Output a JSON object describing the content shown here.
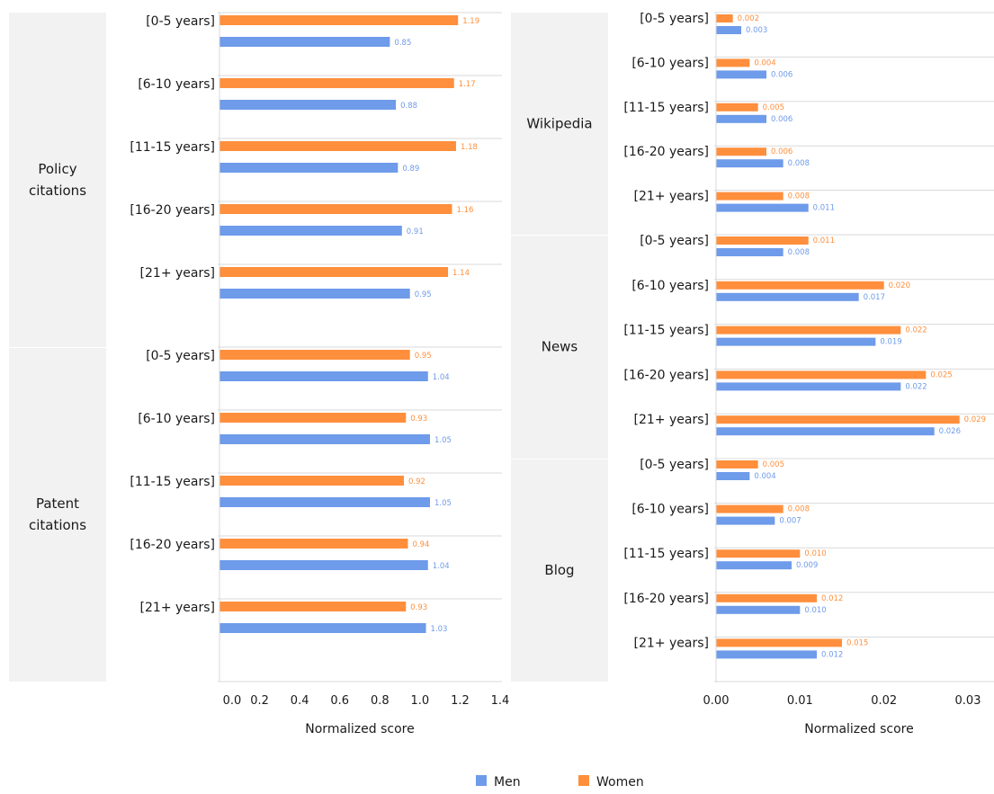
{
  "legend": {
    "men": "Men",
    "women": "Women"
  },
  "colors": {
    "men": "#6e9bea",
    "women": "#ff8f3c",
    "panel_bg": "#f2f2f2",
    "grid": "#d9d9d9"
  },
  "chart_data": [
    {
      "type": "bar",
      "orientation": "horizontal",
      "xlabel": "Normalized score",
      "xlim": [
        0,
        1.4
      ],
      "x_ticks": [
        "0.0",
        "0.2",
        "0.4",
        "0.6",
        "0.8",
        "1.0",
        "1.2",
        "1.4"
      ],
      "value_format": 2,
      "groups": [
        {
          "label": "Policy\ncitations",
          "categories": [
            "[0-5 years]",
            "[6-10 years]",
            "[11-15 years]",
            "[16-20 years]",
            "[21+ years]"
          ],
          "series": [
            {
              "name": "Women",
              "values": [
                1.19,
                1.17,
                1.18,
                1.16,
                1.14
              ]
            },
            {
              "name": "Men",
              "values": [
                0.85,
                0.88,
                0.89,
                0.91,
                0.95
              ]
            }
          ]
        },
        {
          "label": "Patent\ncitations",
          "categories": [
            "[0-5 years]",
            "[6-10 years]",
            "[11-15 years]",
            "[16-20 years]",
            "[21+ years]"
          ],
          "series": [
            {
              "name": "Women",
              "values": [
                0.95,
                0.93,
                0.92,
                0.94,
                0.93
              ]
            },
            {
              "name": "Men",
              "values": [
                1.04,
                1.05,
                1.05,
                1.04,
                1.03
              ]
            }
          ]
        }
      ]
    },
    {
      "type": "bar",
      "orientation": "horizontal",
      "xlabel": "Normalized score",
      "xlim": [
        0,
        0.033
      ],
      "x_ticks": [
        "0.00",
        "0.01",
        "0.02",
        "0.03"
      ],
      "value_format": 3,
      "groups": [
        {
          "label": "Wikipedia",
          "categories": [
            "[0-5 years]",
            "[6-10 years]",
            "[11-15 years]",
            "[16-20 years]",
            "[21+ years]"
          ],
          "series": [
            {
              "name": "Women",
              "values": [
                0.002,
                0.004,
                0.005,
                0.006,
                0.008
              ]
            },
            {
              "name": "Men",
              "values": [
                0.003,
                0.006,
                0.006,
                0.008,
                0.011
              ]
            }
          ]
        },
        {
          "label": "News",
          "categories": [
            "[0-5 years]",
            "[6-10 years]",
            "[11-15 years]",
            "[16-20 years]",
            "[21+ years]"
          ],
          "series": [
            {
              "name": "Women",
              "values": [
                0.011,
                0.02,
                0.022,
                0.025,
                0.029
              ]
            },
            {
              "name": "Men",
              "values": [
                0.008,
                0.017,
                0.019,
                0.022,
                0.026
              ]
            }
          ]
        },
        {
          "label": "Blog",
          "categories": [
            "[0-5 years]",
            "[6-10 years]",
            "[11-15 years]",
            "[16-20 years]",
            "[21+ years]"
          ],
          "series": [
            {
              "name": "Women",
              "values": [
                0.005,
                0.008,
                0.01,
                0.012,
                0.015
              ]
            },
            {
              "name": "Men",
              "values": [
                0.004,
                0.007,
                0.009,
                0.01,
                0.012
              ]
            }
          ]
        }
      ]
    }
  ]
}
